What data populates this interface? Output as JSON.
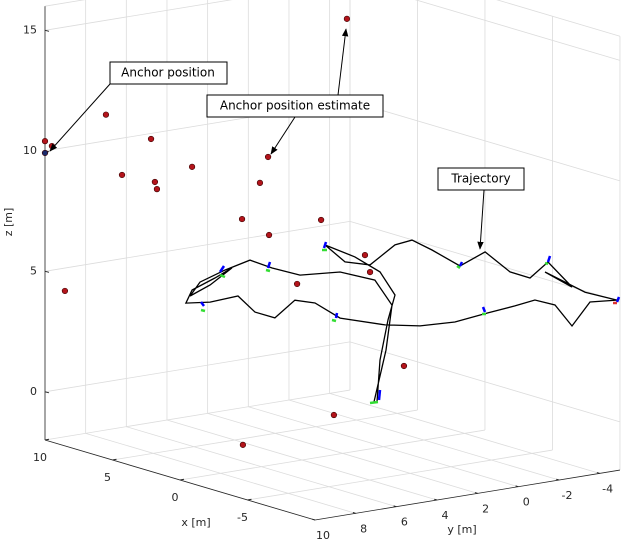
{
  "chart_data": {
    "type": "scatter3d",
    "xlabel": "x [m]",
    "ylabel": "y [m]",
    "zlabel": "z [m]",
    "xlim": [
      -10,
      10
    ],
    "ylim": [
      -5,
      10
    ],
    "zlim": [
      -2,
      16
    ],
    "xticks": [
      -5,
      0,
      5,
      10
    ],
    "yticks": [
      -4,
      -2,
      0,
      2,
      4,
      6,
      8,
      10
    ],
    "zticks": [
      0,
      5,
      10,
      15
    ],
    "grid": true,
    "annotations": [
      "Anchor position",
      "Anchor position estimate",
      "Trajectory"
    ],
    "series": [
      {
        "mode": "markers",
        "color": "#b3141b",
        "x": [
          0,
          10,
          10,
          8,
          6,
          8,
          4,
          6,
          6,
          2,
          2,
          2,
          0,
          0,
          -2,
          -2,
          0,
          10,
          -4,
          0,
          4
        ],
        "y": [
          1.79,
          10.0,
          9.66,
          8.33,
          7.44,
          7.54,
          6.75,
          7.25,
          7.15,
          4.34,
          4.74,
          5.62,
          3.06,
          5.62,
          2.23,
          1.98,
          4.24,
          9.02,
          1.64,
          2.43,
          4.25
        ],
        "z": [
          16.0,
          10.4,
          10.15,
          11.6,
          10.8,
          8.99,
          9.88,
          8.99,
          8.68,
          10.29,
          9.27,
          7.89,
          7.83,
          7.56,
          6.59,
          5.85,
          5.34,
          4.05,
          2.24,
          -0.35,
          -2.0
        ]
      },
      {
        "mode": "markers",
        "color": "#1a2a6c",
        "x": [
          10
        ],
        "y": [
          10
        ],
        "z": [
          9.91
        ]
      },
      {
        "mode": "line",
        "color": "#000000",
        "x": [
          0.27,
          0.14,
          -0.2,
          -0.49,
          0.14,
          1.2,
          2.46,
          1.62,
          0.56,
          -0.49,
          -1.21,
          -2.06,
          -3.24,
          -4.3,
          -5.35,
          -6.2,
          -6.96,
          -7.97,
          -6.83,
          -8.53,
          -9.87,
          -8.73,
          -7.97,
          -7.25,
          -6.41,
          -5.56,
          -4.42,
          -3.03,
          -1.55,
          -0.07,
          1.83,
          2.89,
          3.73,
          4.58,
          5.42,
          6.14,
          7.32,
          8.34,
          8.08,
          7.11,
          6.39,
          7.32,
          8.17,
          7.75,
          6.69,
          5.63,
          4.7,
          3.52,
          1.83,
          0.35,
          -0.37,
          -0.11,
          0.39
        ],
        "y": [
          0.13,
          0.07,
          -0.1,
          -0.25,
          0.07,
          0.6,
          1.23,
          0.81,
          0.28,
          -0.25,
          -0.61,
          -1.03,
          -1.62,
          -2.15,
          -2.68,
          -3.1,
          -3.48,
          -3.99,
          -3.42,
          -4.26,
          -4.94,
          -4.37,
          -3.99,
          -3.63,
          -3.2,
          -2.78,
          -2.21,
          -1.51,
          -0.78,
          -0.04,
          0.91,
          1.44,
          1.87,
          2.29,
          2.71,
          3.07,
          3.66,
          4.17,
          4.04,
          3.56,
          3.2,
          3.66,
          4.08,
          3.87,
          3.35,
          2.82,
          2.35,
          1.76,
          0.91,
          0.18,
          -0.18,
          -0.06,
          0.2
        ],
        "z": [
          -0.17,
          1.58,
          3.28,
          4.34,
          5.24,
          5.76,
          6.13,
          5.51,
          5.49,
          6.42,
          6.69,
          6.36,
          5.81,
          6.5,
          5.77,
          5.6,
          6.34,
          5.4,
          5.91,
          5.24,
          5.04,
          4.85,
          3.78,
          4.58,
          4.71,
          4.38,
          3.98,
          3.47,
          3.16,
          3.06,
          3.16,
          3.68,
          3.72,
          2.9,
          3.06,
          3.66,
          3.29,
          3.15,
          3.72,
          4.31,
          4.8,
          4.0,
          3.46,
          4.08,
          4.68,
          5.2,
          4.96,
          4.78,
          5.07,
          4.88,
          3.91,
          2.02,
          -0.18
        ]
      }
    ]
  }
}
